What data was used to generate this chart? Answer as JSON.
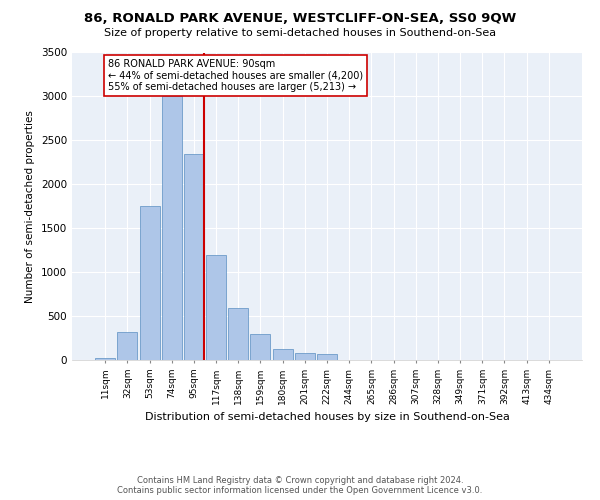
{
  "title": "86, RONALD PARK AVENUE, WESTCLIFF-ON-SEA, SS0 9QW",
  "subtitle": "Size of property relative to semi-detached houses in Southend-on-Sea",
  "xlabel": "Distribution of semi-detached houses by size in Southend-on-Sea",
  "ylabel": "Number of semi-detached properties",
  "categories": [
    "11sqm",
    "32sqm",
    "53sqm",
    "74sqm",
    "95sqm",
    "117sqm",
    "138sqm",
    "159sqm",
    "180sqm",
    "201sqm",
    "222sqm",
    "244sqm",
    "265sqm",
    "286sqm",
    "307sqm",
    "328sqm",
    "349sqm",
    "371sqm",
    "392sqm",
    "413sqm",
    "434sqm"
  ],
  "values": [
    20,
    320,
    1750,
    3000,
    2350,
    1200,
    590,
    300,
    130,
    80,
    70,
    0,
    0,
    0,
    0,
    0,
    0,
    0,
    0,
    0,
    0
  ],
  "bar_color": "#aec6e8",
  "bar_edge_color": "#5a8fc2",
  "property_bin_index": 4,
  "marker_line_color": "#cc0000",
  "annotation_text": "86 RONALD PARK AVENUE: 90sqm\n← 44% of semi-detached houses are smaller (4,200)\n55% of semi-detached houses are larger (5,213) →",
  "annotation_box_color": "#ffffff",
  "annotation_box_edge_color": "#cc0000",
  "ylim": [
    0,
    3500
  ],
  "yticks": [
    0,
    500,
    1000,
    1500,
    2000,
    2500,
    3000,
    3500
  ],
  "background_color": "#eaf0f8",
  "footer_line1": "Contains HM Land Registry data © Crown copyright and database right 2024.",
  "footer_line2": "Contains public sector information licensed under the Open Government Licence v3.0."
}
